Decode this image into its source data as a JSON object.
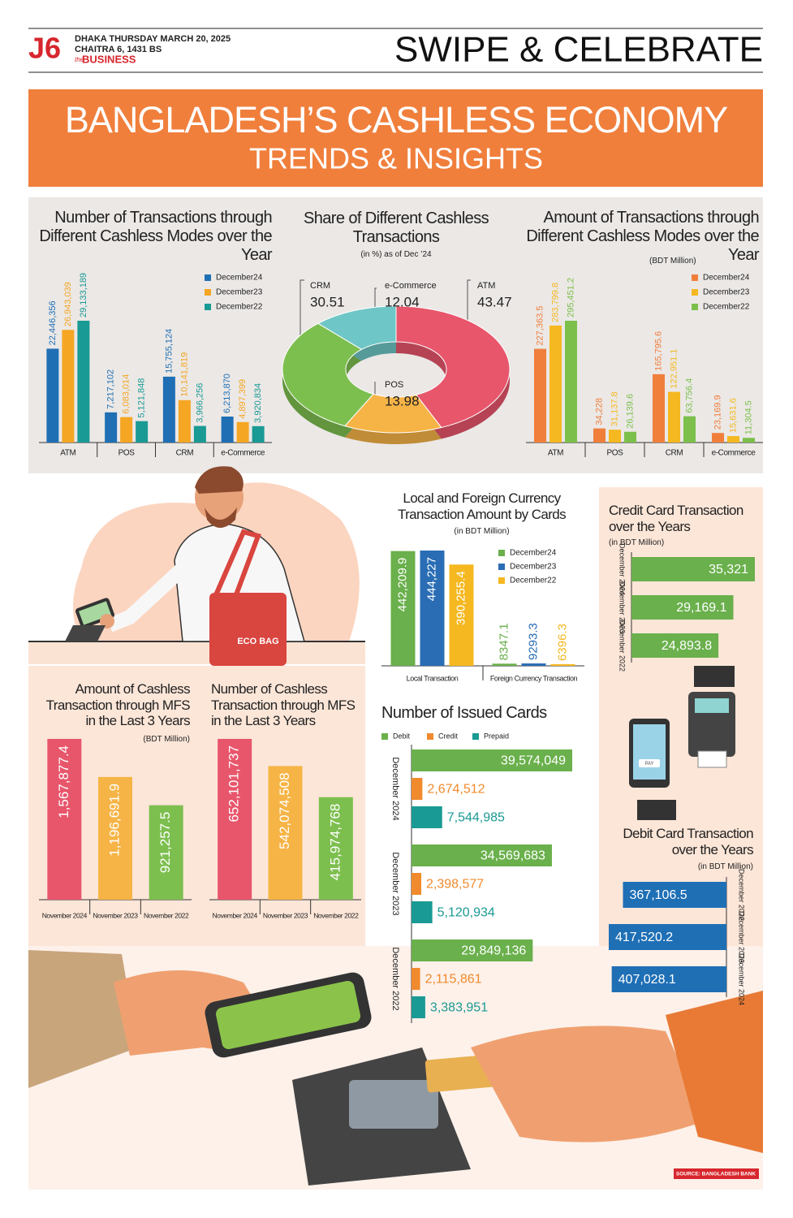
{
  "header": {
    "page": "J6",
    "date": "DHAKA THURSDAY MARCH 20, 2025",
    "bengali_date": "CHAITRA 6, 1431 BS",
    "section_prefix": "the",
    "section": "BUSINESS",
    "headline": "SWIPE & CELEBRATE"
  },
  "banner": {
    "title": "BANGLADESH’S CASHLESS ECONOMY",
    "subtitle": "TRENDS & INSIGHTS"
  },
  "illustration": {
    "bag_label": "ECO BAG",
    "phone_button": "PAY"
  },
  "chart_data": [
    {
      "type": "bar",
      "orientation": "vertical",
      "title": "Number of Transactions through Different Cashless Modes over the Year",
      "categories": [
        "ATM",
        "POS",
        "CRM",
        "e-Commerce"
      ],
      "series": [
        {
          "name": "December24",
          "color": "#1f6fb5",
          "values": [
            22446356,
            7217102,
            15755124,
            6213870
          ],
          "value_labels": [
            "22,446,356",
            "7,217,102",
            "15,755,124",
            "6,213,870"
          ]
        },
        {
          "name": "December23",
          "color": "#f5a623",
          "values": [
            26943039,
            6083014,
            10141819,
            4897399
          ],
          "value_labels": [
            "26,943,039",
            "6,083,014",
            "10,141,819",
            "4,897,399"
          ]
        },
        {
          "name": "December22",
          "color": "#1a9a94",
          "values": [
            29133189,
            5121848,
            3966256,
            3920834
          ],
          "value_labels": [
            "29,133,189",
            "5,121,848",
            "3,966,256",
            "3,920,834"
          ]
        }
      ]
    },
    {
      "type": "pie",
      "title": "Share of Different Cashless Transactions",
      "subtitle": "(in %) as of Dec ’24",
      "categories": [
        "ATM",
        "POS",
        "CRM",
        "e-Commerce"
      ],
      "values": [
        43.47,
        13.98,
        30.51,
        12.04
      ],
      "colors": [
        "#e8566c",
        "#f6b446",
        "#7dbf4f",
        "#6fc6c6"
      ]
    },
    {
      "type": "bar",
      "orientation": "vertical",
      "title": "Amount of Transactions through Different Cashless Modes over the Year",
      "subtitle": "(BDT Million)",
      "categories": [
        "ATM",
        "POS",
        "CRM",
        "e-Commerce"
      ],
      "series": [
        {
          "name": "December24",
          "color": "#f07f3c",
          "values": [
            227363.5,
            34228,
            165795.6,
            23169.9
          ],
          "value_labels": [
            "227,363.5",
            "34,228",
            "165,795.6",
            "23,169.9"
          ]
        },
        {
          "name": "December23",
          "color": "#f5b820",
          "values": [
            283799.8,
            31137.8,
            122951.1,
            15631.6
          ],
          "value_labels": [
            "283,799.8",
            "31,137.8",
            "122,951.1",
            "15,631.6"
          ]
        },
        {
          "name": "December22",
          "color": "#7cc04b",
          "values": [
            295451.2,
            26139.6,
            63756.4,
            11304.5
          ],
          "value_labels": [
            "295,451.2",
            "26,139.6",
            "63,756.4",
            "11,304.5"
          ]
        }
      ]
    },
    {
      "type": "bar",
      "orientation": "vertical",
      "title": "Local and Foreign Currency Transaction Amount by Cards",
      "subtitle": "(in BDT Million)",
      "categories": [
        "Local Transaction",
        "Foreign Currency Transaction"
      ],
      "series": [
        {
          "name": "December24",
          "color": "#6ab04c",
          "values": [
            442209.9,
            8347.1
          ],
          "value_labels": [
            "442,209.9",
            "8347.1"
          ]
        },
        {
          "name": "December23",
          "color": "#2a6db5",
          "values": [
            444227,
            9293.3
          ],
          "value_labels": [
            "444,227",
            "9293.3"
          ]
        },
        {
          "name": "December22",
          "color": "#f5b820",
          "values": [
            390255.4,
            6396.3
          ],
          "value_labels": [
            "390,255.4",
            "6396.3"
          ]
        }
      ]
    },
    {
      "type": "bar",
      "orientation": "horizontal",
      "title": "Credit Card Transaction over the Years",
      "subtitle": "(in BDT Million)",
      "categories": [
        "December 2024",
        "December 2023",
        "December 2022"
      ],
      "values": [
        35321,
        29169.1,
        24893.8
      ],
      "value_labels": [
        "35,321",
        "29,169.1",
        "24,893.8"
      ],
      "color": "#6ab04c"
    },
    {
      "type": "bar",
      "orientation": "vertical",
      "title": "Amount of Cashless Transaction through MFS in the Last 3 Years",
      "subtitle": "(BDT Million)",
      "categories": [
        "November 2024",
        "November 2023",
        "November 2022"
      ],
      "values": [
        1567877.4,
        1196691.9,
        921257.5
      ],
      "value_labels": [
        "1,567,877.4",
        "1,196,691.9",
        "921,257.5"
      ],
      "colors": [
        "#e8566c",
        "#f6b446",
        "#7dbf4f"
      ]
    },
    {
      "type": "bar",
      "orientation": "vertical",
      "title": "Number of Cashless Transaction through MFS in the Last 3 Years",
      "categories": [
        "November 2024",
        "November 2023",
        "November 2022"
      ],
      "values": [
        652101737,
        542074508,
        415974768
      ],
      "value_labels": [
        "652,101,737",
        "542,074,508",
        "415,974,768"
      ],
      "colors": [
        "#e8566c",
        "#f6b446",
        "#7dbf4f"
      ]
    },
    {
      "type": "bar",
      "orientation": "horizontal",
      "title": "Number of Issued Cards",
      "categories": [
        "December 2024",
        "December 2023",
        "December 2022"
      ],
      "series": [
        {
          "name": "Debit",
          "color": "#6ab04c",
          "values": [
            39574049,
            34569683,
            29849136
          ],
          "value_labels": [
            "39,574,049",
            "34,569,683",
            "29,849,136"
          ]
        },
        {
          "name": "Credit",
          "color": "#f08a2c",
          "values": [
            2674512,
            2398577,
            2115861
          ],
          "value_labels": [
            "2,674,512",
            "2,398,577",
            "2,115,861"
          ]
        },
        {
          "name": "Prepaid",
          "color": "#1a9a94",
          "values": [
            7544985,
            5120934,
            3383951
          ],
          "value_labels": [
            "7,544,985",
            "5,120,934",
            "3,383,951"
          ]
        }
      ]
    },
    {
      "type": "bar",
      "orientation": "horizontal",
      "title": "Debit Card Transaction over the Years",
      "subtitle": "(in BDT Million)",
      "categories": [
        "December 2022",
        "December 2023",
        "December 2024"
      ],
      "values": [
        367106.5,
        417520.2,
        407028.1
      ],
      "value_labels": [
        "367,106.5",
        "417,520.2",
        "407,028.1"
      ],
      "color": "#1f6fb5"
    }
  ],
  "source": "SOURCE: BANGLADESH BANK"
}
